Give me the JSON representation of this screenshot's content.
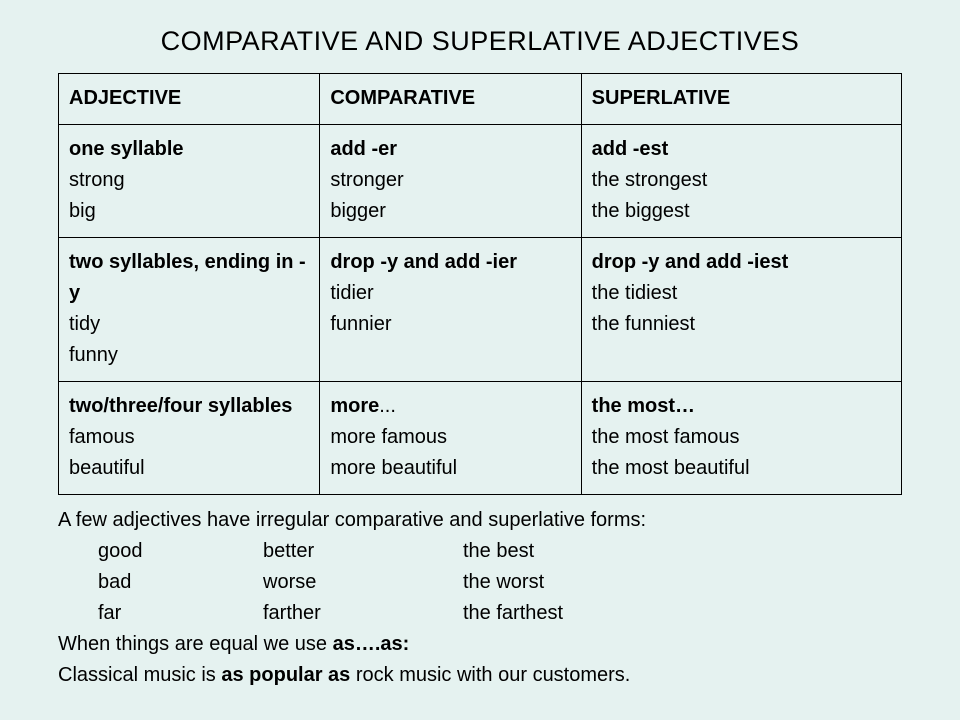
{
  "title": "COMPARATIVE AND SUPERLATIVE ADJECTIVES",
  "table": {
    "header": {
      "c1": "ADJECTIVE",
      "c2": "COMPARATIVE",
      "c3": "SUPERLATIVE"
    },
    "rows": [
      {
        "c1": {
          "rule": "one syllable",
          "ex1": "strong",
          "ex2": "big"
        },
        "c2": {
          "rule": "add -er",
          "ex1": "stronger",
          "ex2": "bigger"
        },
        "c3": {
          "rule": "add -est",
          "ex1": "the strongest",
          "ex2": "the biggest"
        }
      },
      {
        "c1": {
          "rule": "two syllables, ending in -y",
          "ex1": "tidy",
          "ex2": "funny"
        },
        "c2": {
          "rule": "drop -y and add -ier",
          "ex1": "tidier",
          "ex2": "funnier"
        },
        "c3": {
          "rule": "drop -y and add -iest",
          "ex1": "the tidiest",
          "ex2": "the funniest"
        }
      },
      {
        "c1": {
          "rule": "two/three/four syllables",
          "ex1": "famous",
          "ex2": "beautiful"
        },
        "c2": {
          "rule": "more",
          "ruleTail": "...",
          "ex1": "more famous",
          "ex2": "more beautiful"
        },
        "c3": {
          "rule": "the most…",
          "ex1": "the most famous",
          "ex2": "the most beautiful"
        }
      }
    ]
  },
  "notes": {
    "intro": "A few adjectives have irregular comparative and superlative forms:",
    "irregular": [
      {
        "adj": "good",
        "comp": "better",
        "sup": "the best"
      },
      {
        "adj": "bad",
        "comp": "worse",
        "sup": "the worst"
      },
      {
        "adj": "far",
        "comp": "farther",
        "sup": "the farthest"
      }
    ],
    "equal1a": "When things are equal we use ",
    "equal1b": "as….as:",
    "equal2a": "Classical music is ",
    "equal2b": "as popular as",
    "equal2c": " rock music with our customers."
  }
}
